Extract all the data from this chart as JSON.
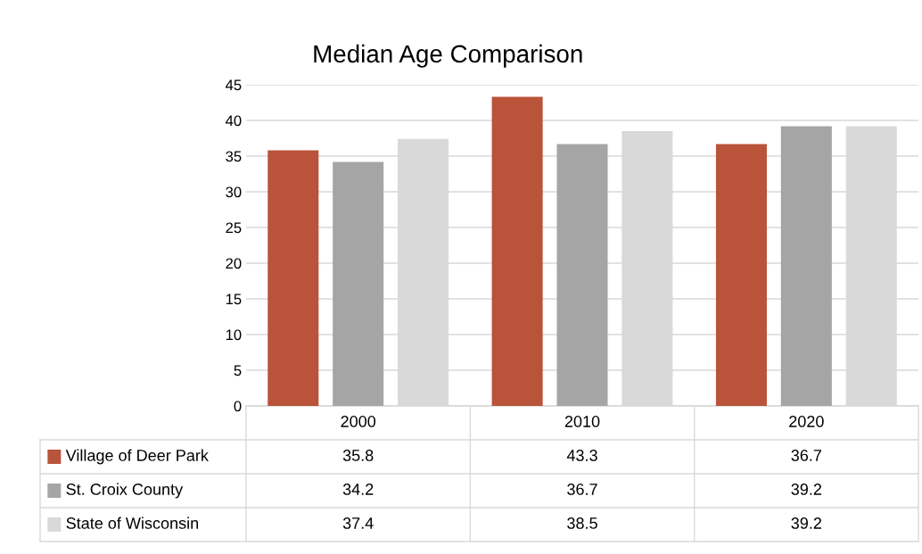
{
  "chart_data": {
    "type": "bar",
    "title": "Median Age Comparison",
    "categories": [
      "2000",
      "2010",
      "2020"
    ],
    "series": [
      {
        "name": "Village of Deer Park",
        "color": "#b9533a",
        "values": [
          35.8,
          43.3,
          36.7
        ]
      },
      {
        "name": "St. Croix County",
        "color": "#a5a5a5",
        "values": [
          34.2,
          36.7,
          39.2
        ]
      },
      {
        "name": "State of Wisconsin",
        "color": "#d9d9d9",
        "values": [
          37.4,
          38.5,
          39.2
        ]
      }
    ],
    "ylim": [
      0,
      45
    ],
    "yticks": [
      0,
      5,
      10,
      15,
      20,
      25,
      30,
      35,
      40,
      45
    ],
    "grid": "y",
    "legend": "bottom",
    "data_labels": true
  }
}
